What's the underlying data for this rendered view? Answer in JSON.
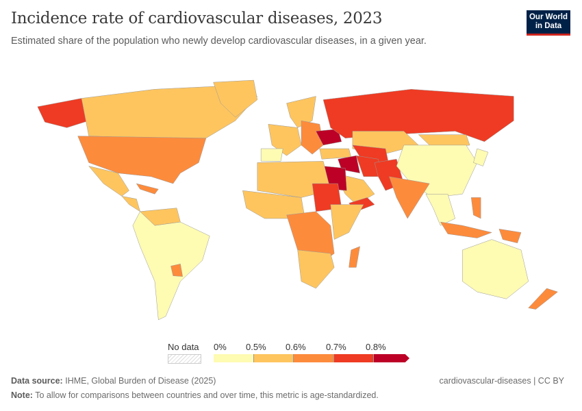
{
  "header": {
    "title": "Incidence rate of cardiovascular diseases, 2023",
    "subtitle": "Estimated share of the population who newly develop cardiovascular diseases, in a given year.",
    "logo_text": "Our World in Data"
  },
  "legend": {
    "no_data_label": "No data",
    "ticks": [
      "0%",
      "0.5%",
      "0.6%",
      "0.7%",
      "0.8%"
    ],
    "colors": [
      "#fefbb3",
      "#fec55f",
      "#fd8b3c",
      "#ef3b23",
      "#bc0026"
    ],
    "no_data_color": "#e8e8e8"
  },
  "map_regions": {
    "alaska": 3,
    "canada": 1,
    "greenland": 1,
    "usa": 2,
    "mexico": 1,
    "central_america": 1,
    "caribbean": 2,
    "south_america": 0,
    "paraguay": 2,
    "venezuela": 1,
    "western_europe": 1,
    "iberia": 0,
    "scandinavia": 1,
    "eastern_europe": 2,
    "ukraine": 4,
    "russia": 3,
    "kazakhstan": 1,
    "central_asia": 3,
    "iran": 3,
    "iraq_syria": 4,
    "turkey": 1,
    "arabia": 1,
    "yemen": 3,
    "egypt": 4,
    "north_africa": 1,
    "west_africa": 1,
    "sudan": 3,
    "central_africa": 2,
    "east_africa": 1,
    "southern_africa": 1,
    "madagascar": 2,
    "mongolia": 1,
    "china": 0,
    "india": 2,
    "afghanistan_pakistan": 3,
    "southeast_asia": 0,
    "indonesia": 2,
    "philippines": 2,
    "japan": 0,
    "australia": 0,
    "new_zealand": 2,
    "png": 2
  },
  "footer": {
    "source_label": "Data source:",
    "source": "IHME, Global Burden of Disease (2025)",
    "note_label": "Note:",
    "note": "To allow for comparisons between countries and over time, this metric is age-standardized.",
    "slug": "cardiovascular-diseases | CC BY"
  }
}
